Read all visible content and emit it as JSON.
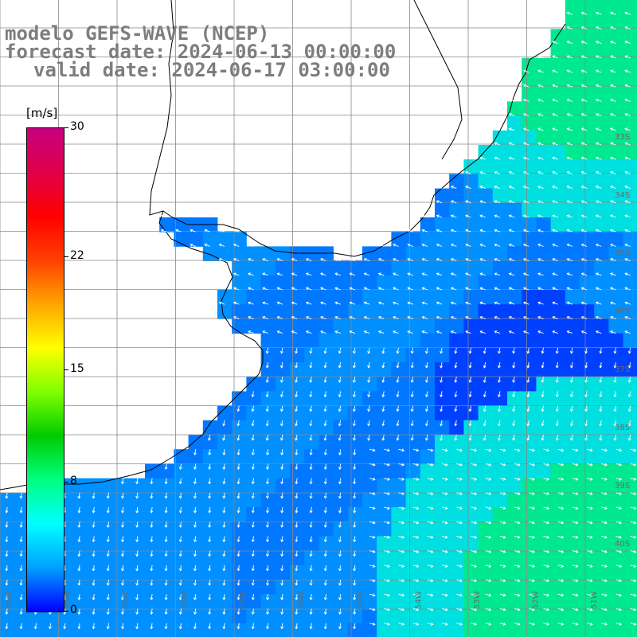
{
  "title": {
    "line1": "modelo GEFS-WAVE (NCEP)",
    "line2": "forecast date: 2024-06-13 00:00:00",
    "line3": "valid date: 2024-06-17 03:00:00"
  },
  "colorbar": {
    "unit": "[m/s]",
    "min": 0,
    "max": 30,
    "ticks": [
      "30",
      "22",
      "15",
      "8",
      "0"
    ],
    "tick_values": [
      30,
      22,
      15,
      8,
      0
    ],
    "colors": [
      "#0000ff",
      "#00a0ff",
      "#00ffff",
      "#00ff80",
      "#00cc00",
      "#80ff00",
      "#ffff00",
      "#ffa500",
      "#ff4000",
      "#ff0000",
      "#e0004a",
      "#c8007e"
    ]
  },
  "grid": {
    "lat_labels": [
      "33S",
      "34S",
      "35S",
      "36S",
      "37S",
      "38S",
      "39S",
      "40S"
    ],
    "lon_labels": [
      "61W",
      "60W",
      "59W",
      "58W",
      "57W",
      "56W",
      "55W",
      "54W",
      "53W",
      "52W",
      "51W"
    ]
  },
  "field": {
    "description_colors": {
      "calm": "#0040ff",
      "moderate": "#0090ff",
      "fresh": "#00e0e0",
      "strong": "#00e890"
    }
  }
}
